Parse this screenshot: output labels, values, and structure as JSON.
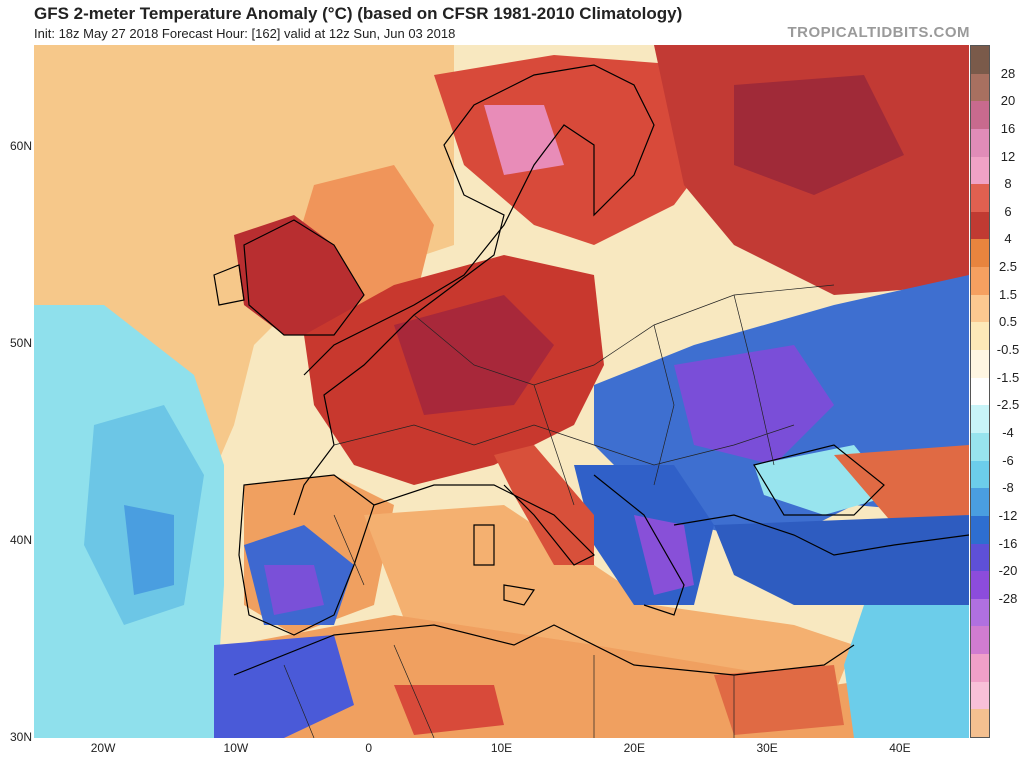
{
  "title": "GFS 2-meter Temperature Anomaly (°C) (based on CFSR 1981-2010 Climatology)",
  "subtitle": "Init: 18z May 27 2018   Forecast Hour: [162]   valid at 12z Sun, Jun 03 2018",
  "brand": "TROPICALTIDBITS.COM",
  "map": {
    "region": "Europe",
    "lat_labels": [
      {
        "text": "60N",
        "lat": 60
      },
      {
        "text": "50N",
        "lat": 50
      },
      {
        "text": "40N",
        "lat": 40
      },
      {
        "text": "30N",
        "lat": 30
      }
    ],
    "lon_labels": [
      {
        "text": "20W",
        "lon": -20
      },
      {
        "text": "10W",
        "lon": -10
      },
      {
        "text": "0",
        "lon": 0
      },
      {
        "text": "10E",
        "lon": 10
      },
      {
        "text": "20E",
        "lon": 20
      },
      {
        "text": "30E",
        "lon": 30
      },
      {
        "text": "40E",
        "lon": 40
      }
    ]
  },
  "colorbar": {
    "labels": [
      "28",
      "20",
      "16",
      "12",
      "8",
      "6",
      "4",
      "2.5",
      "1.5",
      "0.5",
      "-0.5",
      "-1.5",
      "-2.5",
      "-4",
      "-6",
      "-8",
      "-12",
      "-16",
      "-20",
      "-28"
    ],
    "colors": [
      "#7a5a4a",
      "#a87060",
      "#c86a8e",
      "#e08cb8",
      "#f0a2c6",
      "#e06050",
      "#c03a32",
      "#e8843e",
      "#f5a060",
      "#fbc890",
      "#fde8b8",
      "#fff6e2",
      "#ffffff",
      "#c8f4f8",
      "#98e4ee",
      "#6ccdea",
      "#4a9ee0",
      "#2e6ed0",
      "#5e50d8",
      "#8c4cdc",
      "#b070e0",
      "#d07cd0",
      "#f0a0c8",
      "#f8c0d8",
      "#f4c090"
    ]
  }
}
